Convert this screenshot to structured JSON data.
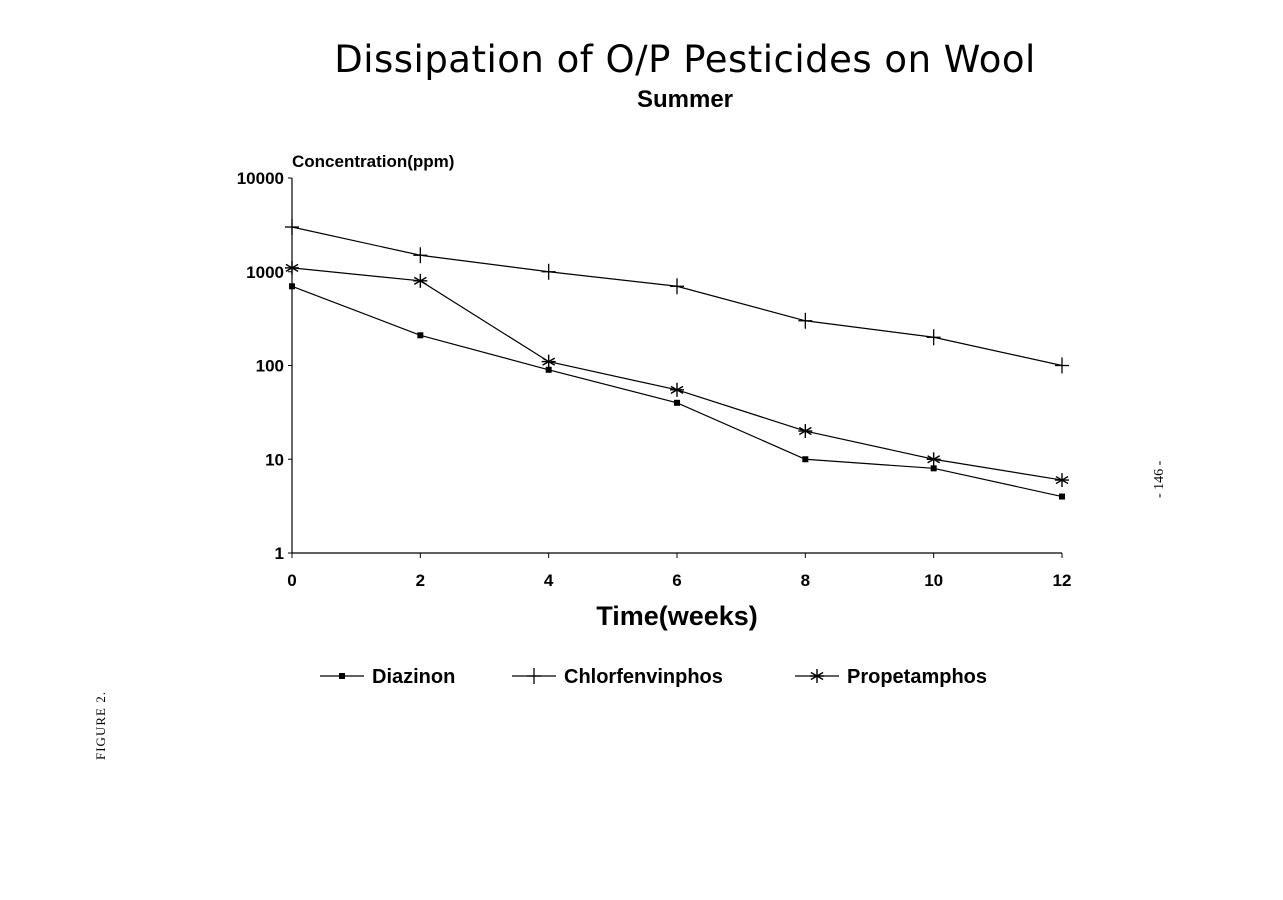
{
  "page": {
    "figure_label": "FIGURE 2.",
    "page_number": "- 146 -"
  },
  "chart_data": {
    "type": "line",
    "title": "Dissipation of O/P Pesticides on Wool",
    "subtitle": "Summer",
    "xlabel": "Time(weeks)",
    "ylabel": "Concentration(ppm)",
    "yscale": "log",
    "ylim": [
      1,
      10000
    ],
    "xlim": [
      0,
      12
    ],
    "x": [
      0,
      2,
      4,
      6,
      8,
      10,
      12
    ],
    "x_tick_labels": [
      "0",
      "2",
      "4",
      "6",
      "8",
      "10",
      "12"
    ],
    "y_ticks": [
      1,
      10,
      100,
      1000,
      10000
    ],
    "y_tick_labels": [
      "1",
      "10",
      "100",
      "1000",
      "10000"
    ],
    "grid": false,
    "legend_position": "bottom",
    "series": [
      {
        "name": "Diazinon",
        "marker": "square",
        "values": [
          700,
          210,
          90,
          40,
          10,
          8,
          4
        ]
      },
      {
        "name": "Chlorfenvinphos",
        "marker": "plus",
        "values": [
          3000,
          1500,
          1000,
          700,
          300,
          200,
          100
        ]
      },
      {
        "name": "Propetamphos",
        "marker": "asterisk",
        "values": [
          1100,
          800,
          110,
          55,
          20,
          10,
          6
        ]
      }
    ]
  }
}
